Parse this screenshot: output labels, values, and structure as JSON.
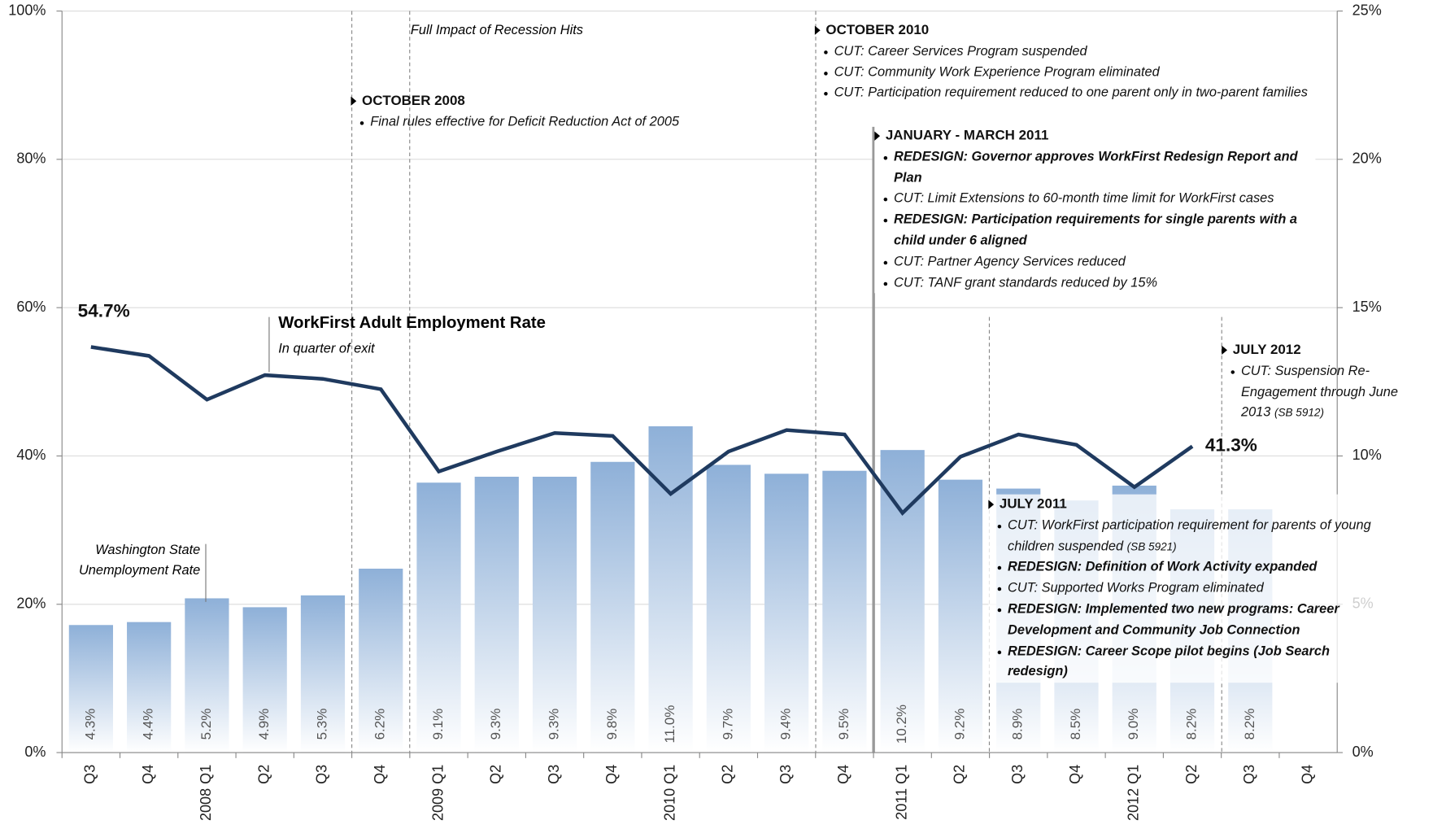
{
  "chart_data": {
    "type": "combo",
    "categories": [
      "Q3",
      "Q4",
      "2008 Q1",
      "Q2",
      "Q3",
      "Q4",
      "2009 Q1",
      "Q2",
      "Q3",
      "Q4",
      "2010 Q1",
      "Q2",
      "Q3",
      "Q4",
      "2011 Q1",
      "Q2",
      "Q3",
      "Q4",
      "2012 Q1",
      "Q2",
      "Q3",
      "Q4"
    ],
    "ylim": [
      0,
      100
    ],
    "yticks": [
      {
        "value": 0,
        "label": "0%"
      },
      {
        "value": 20,
        "label": "20%"
      },
      {
        "value": 40,
        "label": "40%"
      },
      {
        "value": 60,
        "label": "60%"
      },
      {
        "value": 80,
        "label": "80%"
      },
      {
        "value": 100,
        "label": "100%"
      }
    ],
    "y2lim": [
      0,
      25
    ],
    "y2ticks": [
      {
        "value": 0,
        "label": "0%"
      },
      {
        "value": 5,
        "label": "5%"
      },
      {
        "value": 10,
        "label": "10%"
      },
      {
        "value": 15,
        "label": "15%"
      },
      {
        "value": 20,
        "label": "20%"
      },
      {
        "value": 25,
        "label": "25%"
      }
    ],
    "grid": true,
    "series": [
      {
        "name": "WorkFirst Adult Employment Rate",
        "subtitle": "In quarter of exit",
        "type": "line",
        "color": "#1f3a5f",
        "values": [
          54.7,
          53.5,
          47.6,
          50.9,
          50.4,
          49.0,
          37.9,
          40.6,
          43.1,
          42.7,
          34.9,
          40.6,
          43.5,
          42.9,
          32.3,
          39.9,
          42.9,
          41.5,
          35.8,
          41.3,
          null,
          null
        ],
        "value_labels": [
          "54.7%",
          null,
          null,
          null,
          null,
          null,
          null,
          null,
          null,
          null,
          null,
          null,
          null,
          null,
          null,
          null,
          null,
          null,
          null,
          "41.3%",
          null,
          null
        ]
      },
      {
        "name": "Washington State Unemployment Rate",
        "type": "bar",
        "axis": "y2",
        "color": "#8eb0d8",
        "values": [
          4.3,
          4.4,
          5.2,
          4.9,
          5.3,
          6.2,
          9.1,
          9.3,
          9.3,
          9.8,
          11.0,
          9.7,
          9.4,
          9.5,
          10.2,
          9.2,
          8.9,
          8.5,
          9.0,
          8.2,
          8.2,
          null
        ],
        "value_labels": [
          "4.3%",
          "4.4%",
          "5.2%",
          "4.9%",
          "5.3%",
          "6.2%",
          "9.1%",
          "9.3%",
          "9.3%",
          "9.8%",
          "11.0%",
          "9.7%",
          "9.4%",
          "9.5%",
          "10.2%",
          "9.2%",
          "8.9%",
          "8.5%",
          "9.0%",
          "8.2%",
          "8.2%",
          null
        ]
      }
    ],
    "recession_note": "Full Impact of Recession Hits",
    "annotations": [
      {
        "heading": "OCTOBER 2008",
        "items": [
          {
            "text": "Final rules effective for Deficit Reduction Act of 2005",
            "bold": false
          }
        ]
      },
      {
        "heading": "OCTOBER 2010",
        "items": [
          {
            "text": "CUT: Career Services Program suspended",
            "bold": false
          },
          {
            "text": "CUT: Community Work Experience Program eliminated",
            "bold": false
          },
          {
            "text": "CUT: Participation requirement reduced to one parent only in two-parent families",
            "bold": false
          }
        ]
      },
      {
        "heading": "JANUARY - MARCH 2011",
        "items": [
          {
            "text": "REDESIGN: Governor approves WorkFirst Redesign Report and Plan",
            "bold": true
          },
          {
            "text": "CUT: Limit Extensions to 60-month time limit for WorkFirst cases",
            "bold": false
          },
          {
            "text": "REDESIGN: Participation requirements for single parents with a child under 6 aligned",
            "bold": true
          },
          {
            "text": "CUT: Partner Agency Services reduced",
            "bold": false
          },
          {
            "text": "CUT: TANF grant standards reduced by 15%",
            "bold": false
          }
        ]
      },
      {
        "heading": "JULY 2011",
        "items": [
          {
            "text": "CUT: WorkFirst participation requirement for parents of young children suspended",
            "ref": "(SB 5921)",
            "bold": false
          },
          {
            "text": "REDESIGN: Definition of Work Activity expanded",
            "bold": true
          },
          {
            "text": "CUT: Supported Works Program eliminated",
            "bold": false
          },
          {
            "text": "REDESIGN: Implemented two new programs: Career Development and Community Job Connection",
            "bold": true
          },
          {
            "text": "REDESIGN: Career Scope pilot begins (Job Search redesign)",
            "bold": true
          }
        ]
      },
      {
        "heading": "JULY 2012",
        "items": [
          {
            "text": "CUT: Suspension Re-Engagement through June 2013",
            "ref": "(SB 5912)",
            "bold": false
          }
        ]
      }
    ]
  }
}
